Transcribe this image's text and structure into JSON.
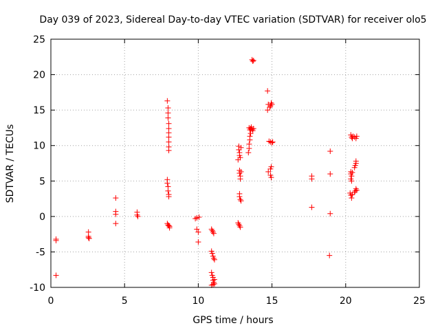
{
  "chart_data": {
    "type": "scatter",
    "title": "Day 039 of 2023, Sidereal Day-to-day VTEC variation (SDTVAR) for receiver olo5",
    "xlabel": "GPS time / hours",
    "ylabel": "SDTVAR / TECUs",
    "xlim": [
      0,
      25
    ],
    "ylim": [
      -10,
      25
    ],
    "xticks": [
      0,
      5,
      10,
      15,
      20,
      25
    ],
    "yticks": [
      -10,
      -5,
      0,
      5,
      10,
      15,
      20,
      25
    ],
    "grid": true,
    "marker": "+",
    "series": [
      {
        "name": "SDTVAR",
        "color": "#ff0000",
        "points": [
          [
            0.35,
            -3.2
          ],
          [
            0.35,
            -3.4
          ],
          [
            0.35,
            -8.3
          ],
          [
            2.55,
            -2.2
          ],
          [
            2.55,
            -2.8
          ],
          [
            2.55,
            -3.0
          ],
          [
            2.6,
            -3.1
          ],
          [
            4.4,
            2.6
          ],
          [
            4.4,
            0.7
          ],
          [
            4.4,
            0.3
          ],
          [
            4.4,
            -1.0
          ],
          [
            5.85,
            0.6
          ],
          [
            5.85,
            0.2
          ],
          [
            5.9,
            0.0
          ],
          [
            7.9,
            16.3
          ],
          [
            7.95,
            15.3
          ],
          [
            7.95,
            14.6
          ],
          [
            7.95,
            13.9
          ],
          [
            8.0,
            13.1
          ],
          [
            8.0,
            12.4
          ],
          [
            8.0,
            11.8
          ],
          [
            8.0,
            11.2
          ],
          [
            8.0,
            10.5
          ],
          [
            8.0,
            9.8
          ],
          [
            8.0,
            9.3
          ],
          [
            7.9,
            5.2
          ],
          [
            7.9,
            4.7
          ],
          [
            7.95,
            4.2
          ],
          [
            7.95,
            3.6
          ],
          [
            8.0,
            3.1
          ],
          [
            8.0,
            2.8
          ],
          [
            7.9,
            -1.0
          ],
          [
            7.95,
            -1.2
          ],
          [
            8.0,
            -1.3
          ],
          [
            8.05,
            -1.4
          ],
          [
            8.05,
            -1.6
          ],
          [
            9.8,
            -0.3
          ],
          [
            9.9,
            -0.2
          ],
          [
            9.9,
            -1.8
          ],
          [
            10.0,
            -2.2
          ],
          [
            10.0,
            -3.6
          ],
          [
            10.05,
            -0.1
          ],
          [
            10.9,
            -1.8
          ],
          [
            10.95,
            -2.0
          ],
          [
            11.0,
            -2.2
          ],
          [
            11.05,
            -2.4
          ],
          [
            10.9,
            -4.9
          ],
          [
            10.95,
            -5.2
          ],
          [
            11.0,
            -5.6
          ],
          [
            11.05,
            -5.9
          ],
          [
            11.1,
            -6.1
          ],
          [
            10.9,
            -7.9
          ],
          [
            10.95,
            -8.3
          ],
          [
            11.0,
            -8.6
          ],
          [
            11.0,
            -9.0
          ],
          [
            11.05,
            -9.3
          ],
          [
            11.1,
            -8.9
          ],
          [
            11.0,
            -9.6
          ],
          [
            10.9,
            -9.7
          ],
          [
            11.1,
            -9.5
          ],
          [
            12.75,
            9.9
          ],
          [
            12.75,
            9.4
          ],
          [
            12.8,
            9.0
          ],
          [
            12.8,
            8.6
          ],
          [
            12.85,
            8.3
          ],
          [
            12.9,
            9.7
          ],
          [
            12.7,
            8.0
          ],
          [
            12.8,
            6.5
          ],
          [
            12.8,
            6.1
          ],
          [
            12.85,
            5.7
          ],
          [
            12.85,
            5.3
          ],
          [
            12.9,
            6.3
          ],
          [
            12.8,
            3.2
          ],
          [
            12.8,
            2.8
          ],
          [
            12.85,
            2.4
          ],
          [
            12.9,
            2.2
          ],
          [
            12.7,
            -0.9
          ],
          [
            12.75,
            -1.1
          ],
          [
            12.8,
            -1.3
          ],
          [
            12.85,
            -1.5
          ],
          [
            13.65,
            22.1
          ],
          [
            13.7,
            21.9
          ],
          [
            13.75,
            22.0
          ],
          [
            13.45,
            12.5
          ],
          [
            13.5,
            12.2
          ],
          [
            13.55,
            12.4
          ],
          [
            13.6,
            12.6
          ],
          [
            13.65,
            12.3
          ],
          [
            13.7,
            12.1
          ],
          [
            13.75,
            12.4
          ],
          [
            13.5,
            11.3
          ],
          [
            13.5,
            10.8
          ],
          [
            13.45,
            10.2
          ],
          [
            13.45,
            9.6
          ],
          [
            13.4,
            9.0
          ],
          [
            13.55,
            11.7
          ],
          [
            14.7,
            17.7
          ],
          [
            14.75,
            15.8
          ],
          [
            14.7,
            15.0
          ],
          [
            14.95,
            16.0
          ],
          [
            14.9,
            15.6
          ],
          [
            14.85,
            15.4
          ],
          [
            15.0,
            15.8
          ],
          [
            14.8,
            10.6
          ],
          [
            14.9,
            10.5
          ],
          [
            15.0,
            10.4
          ],
          [
            15.05,
            10.5
          ],
          [
            14.75,
            6.3
          ],
          [
            14.9,
            6.7
          ],
          [
            14.95,
            7.0
          ],
          [
            14.9,
            5.8
          ],
          [
            14.95,
            5.5
          ],
          [
            17.7,
            5.7
          ],
          [
            17.7,
            5.3
          ],
          [
            17.7,
            1.3
          ],
          [
            18.95,
            9.2
          ],
          [
            18.95,
            6.0
          ],
          [
            18.95,
            0.4
          ],
          [
            18.9,
            -5.5
          ],
          [
            20.35,
            11.5
          ],
          [
            20.4,
            11.2
          ],
          [
            20.45,
            11.0
          ],
          [
            20.6,
            11.2
          ],
          [
            20.7,
            11.0
          ],
          [
            20.75,
            11.3
          ],
          [
            20.5,
            11.3
          ],
          [
            20.7,
            7.8
          ],
          [
            20.7,
            7.5
          ],
          [
            20.65,
            7.2
          ],
          [
            20.6,
            6.9
          ],
          [
            20.35,
            6.3
          ],
          [
            20.35,
            6.0
          ],
          [
            20.4,
            5.7
          ],
          [
            20.35,
            5.3
          ],
          [
            20.4,
            5.0
          ],
          [
            20.45,
            6.2
          ],
          [
            20.3,
            3.3
          ],
          [
            20.35,
            3.0
          ],
          [
            20.4,
            2.6
          ],
          [
            20.45,
            3.1
          ],
          [
            20.7,
            3.9
          ],
          [
            20.65,
            3.6
          ],
          [
            20.6,
            3.4
          ],
          [
            20.75,
            3.7
          ]
        ]
      }
    ]
  }
}
